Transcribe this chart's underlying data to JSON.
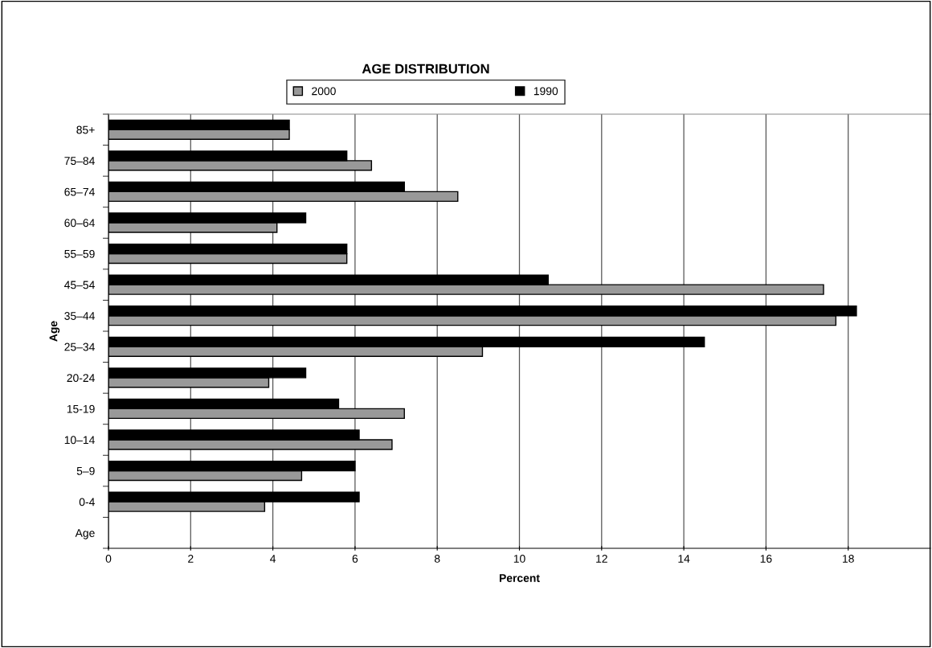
{
  "chart_data": {
    "type": "bar",
    "orientation": "horizontal",
    "title": "AGE DISTRIBUTION",
    "xlabel": "Percent",
    "ylabel": "Age",
    "categories": [
      "85+",
      "75–84",
      "65–74",
      "60–64",
      "55–59",
      "45–54",
      "35–44",
      "25–34",
      "20-24",
      "15-19",
      "10–14",
      "5–9",
      "0-4",
      "Age"
    ],
    "series": [
      {
        "name": "2000",
        "color": "#999999",
        "values": [
          4.4,
          6.4,
          8.5,
          4.1,
          5.8,
          17.4,
          17.7,
          9.1,
          3.9,
          7.2,
          6.9,
          4.7,
          3.8,
          null
        ]
      },
      {
        "name": "1990",
        "color": "#000000",
        "values": [
          4.4,
          5.8,
          7.2,
          4.8,
          5.8,
          10.7,
          18.2,
          14.5,
          4.8,
          5.6,
          6.1,
          6.0,
          6.1,
          null
        ]
      }
    ],
    "xlim": [
      0,
      20
    ],
    "xticks": [
      0,
      2,
      4,
      6,
      8,
      10,
      12,
      14,
      16,
      18
    ],
    "grid": "x",
    "legend": "top"
  }
}
